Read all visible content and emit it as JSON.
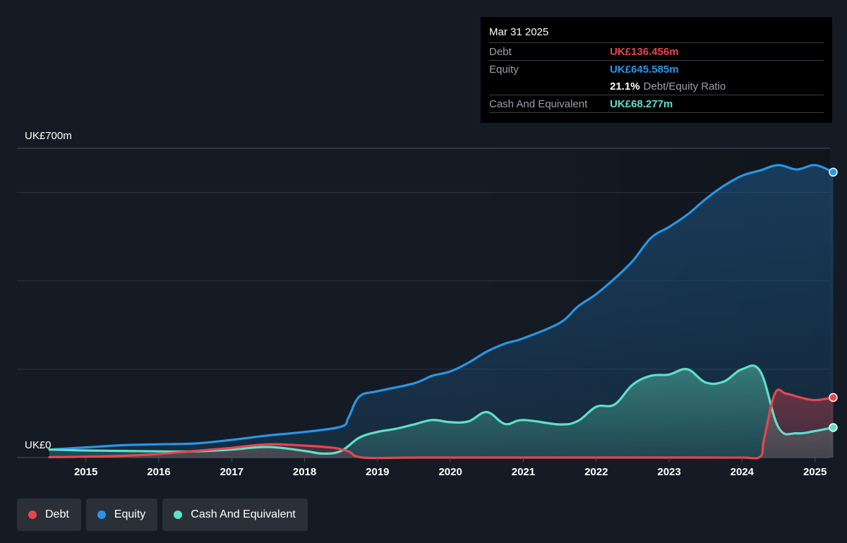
{
  "chart_data": {
    "type": "area",
    "y_unit": "UK£m",
    "ylim": [
      0,
      700
    ],
    "y_tick_labels": [
      "UK£700m",
      "UK£0"
    ],
    "x_tick_labels": [
      "2015",
      "2016",
      "2017",
      "2018",
      "2019",
      "2020",
      "2021",
      "2022",
      "2023",
      "2024",
      "2025"
    ],
    "series": [
      {
        "name": "Debt",
        "color": "#e64650",
        "points": [
          [
            2014.5,
            1
          ],
          [
            2015.0,
            2
          ],
          [
            2015.5,
            4
          ],
          [
            2016.0,
            8
          ],
          [
            2016.5,
            15
          ],
          [
            2017.0,
            22
          ],
          [
            2017.5,
            30
          ],
          [
            2018.0,
            27
          ],
          [
            2018.4,
            22
          ],
          [
            2018.6,
            14
          ],
          [
            2018.8,
            0
          ],
          [
            2019.5,
            0
          ],
          [
            2020.5,
            0
          ],
          [
            2021.5,
            0
          ],
          [
            2022.5,
            0
          ],
          [
            2023.5,
            0
          ],
          [
            2024.0,
            0
          ],
          [
            2024.25,
            2
          ],
          [
            2024.3,
            40
          ],
          [
            2024.45,
            145
          ],
          [
            2024.6,
            145
          ],
          [
            2024.8,
            136
          ],
          [
            2025.0,
            130
          ],
          [
            2025.25,
            136
          ]
        ]
      },
      {
        "name": "Equity",
        "color": "#2896e6",
        "points": [
          [
            2014.5,
            18
          ],
          [
            2015.0,
            23
          ],
          [
            2015.5,
            28
          ],
          [
            2016.0,
            30
          ],
          [
            2016.5,
            32
          ],
          [
            2017.0,
            40
          ],
          [
            2017.5,
            50
          ],
          [
            2018.0,
            58
          ],
          [
            2018.5,
            70
          ],
          [
            2018.6,
            90
          ],
          [
            2018.75,
            138
          ],
          [
            2019.0,
            150
          ],
          [
            2019.5,
            168
          ],
          [
            2019.75,
            185
          ],
          [
            2020.0,
            195
          ],
          [
            2020.25,
            215
          ],
          [
            2020.5,
            240
          ],
          [
            2020.75,
            258
          ],
          [
            2021.0,
            270
          ],
          [
            2021.5,
            305
          ],
          [
            2021.75,
            342
          ],
          [
            2022.0,
            370
          ],
          [
            2022.25,
            405
          ],
          [
            2022.5,
            445
          ],
          [
            2022.75,
            497
          ],
          [
            2023.0,
            522
          ],
          [
            2023.25,
            550
          ],
          [
            2023.5,
            585
          ],
          [
            2023.75,
            615
          ],
          [
            2024.0,
            638
          ],
          [
            2024.25,
            650
          ],
          [
            2024.5,
            662
          ],
          [
            2024.75,
            652
          ],
          [
            2025.0,
            662
          ],
          [
            2025.25,
            646
          ]
        ]
      },
      {
        "name": "Cash And Equivalent",
        "color": "#5ee0c8",
        "points": [
          [
            2014.5,
            18
          ],
          [
            2015.0,
            16
          ],
          [
            2015.5,
            15
          ],
          [
            2016.0,
            14
          ],
          [
            2016.5,
            14
          ],
          [
            2017.0,
            18
          ],
          [
            2017.5,
            24
          ],
          [
            2018.0,
            15
          ],
          [
            2018.25,
            9
          ],
          [
            2018.5,
            15
          ],
          [
            2018.75,
            45
          ],
          [
            2019.0,
            58
          ],
          [
            2019.25,
            65
          ],
          [
            2019.5,
            75
          ],
          [
            2019.75,
            85
          ],
          [
            2020.0,
            80
          ],
          [
            2020.25,
            82
          ],
          [
            2020.5,
            103
          ],
          [
            2020.75,
            76
          ],
          [
            2021.0,
            85
          ],
          [
            2021.5,
            75
          ],
          [
            2021.75,
            83
          ],
          [
            2022.0,
            115
          ],
          [
            2022.25,
            120
          ],
          [
            2022.5,
            165
          ],
          [
            2022.75,
            185
          ],
          [
            2023.0,
            188
          ],
          [
            2023.25,
            200
          ],
          [
            2023.5,
            170
          ],
          [
            2023.75,
            172
          ],
          [
            2024.0,
            200
          ],
          [
            2024.25,
            195
          ],
          [
            2024.5,
            68
          ],
          [
            2024.75,
            55
          ],
          [
            2025.0,
            60
          ],
          [
            2025.25,
            68
          ]
        ]
      }
    ],
    "legend": "bottom-left"
  },
  "tooltip": {
    "date": "Mar 31 2025",
    "debt_label": "Debt",
    "debt_value": "UK£136.456m",
    "equity_label": "Equity",
    "equity_value": "UK£645.585m",
    "ratio_value": "21.1%",
    "ratio_label": "Debt/Equity Ratio",
    "cash_label": "Cash And Equivalent",
    "cash_value": "UK£68.277m"
  },
  "legend": {
    "debt": "Debt",
    "equity": "Equity",
    "cash": "Cash And Equivalent"
  },
  "colors": {
    "debt": "#e64650",
    "equity": "#2896e6",
    "cash": "#5ee0c8",
    "background": "#151b24"
  }
}
